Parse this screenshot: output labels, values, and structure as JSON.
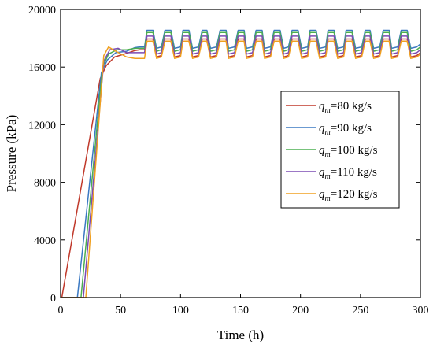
{
  "chart_data": {
    "type": "line",
    "xlabel": "Time (h)",
    "ylabel": "Pressure (kPa)",
    "xlim": [
      0,
      300
    ],
    "ylim": [
      0,
      20000
    ],
    "xticks": [
      "0",
      "50",
      "100",
      "150",
      "200",
      "250",
      "300"
    ],
    "yticks": [
      "0",
      "4000",
      "8000",
      "12000",
      "16000",
      "20000"
    ],
    "grid": false,
    "legend_position": "right",
    "series": [
      {
        "name_main": "q",
        "name_sub": "m",
        "name_rest": "=80 kg/s",
        "color": "#c0392b",
        "x": [
          0,
          1,
          33,
          38,
          45,
          55,
          62,
          66,
          70,
          72,
          77,
          80,
          84,
          87,
          92,
          95,
          100,
          102,
          107,
          110,
          115,
          118,
          122,
          125,
          130,
          133,
          138,
          140,
          145,
          148,
          153,
          155,
          160,
          163,
          168,
          170,
          175,
          178,
          183,
          186,
          190,
          193,
          198,
          201,
          206,
          208,
          213,
          216,
          221,
          223,
          228,
          231,
          236,
          238,
          243,
          246,
          251,
          254,
          258,
          261,
          266,
          269,
          274,
          276,
          281,
          284,
          289,
          292,
          297,
          300
        ],
        "y": [
          0,
          0,
          15200,
          16100,
          16700,
          16950,
          17150,
          17200,
          17200,
          17950,
          17950,
          16700,
          16800,
          17950,
          17950,
          16700,
          16800,
          17950,
          17950,
          16700,
          16800,
          17950,
          17950,
          16700,
          16800,
          17950,
          17950,
          16700,
          16800,
          17950,
          17950,
          16700,
          16800,
          17950,
          17950,
          16700,
          16800,
          17950,
          17950,
          16700,
          16800,
          17950,
          17950,
          16700,
          16800,
          17950,
          17950,
          16700,
          16800,
          17950,
          17950,
          16700,
          16800,
          17950,
          17950,
          16700,
          16800,
          17950,
          17950,
          16700,
          16800,
          17950,
          17950,
          16700,
          16800,
          17950,
          17950,
          16700,
          16800,
          17000
        ]
      },
      {
        "name_main": "q",
        "name_sub": "m",
        "name_rest": "=90 kg/s",
        "color": "#3a78c2",
        "x": [
          0,
          14,
          34,
          39,
          46,
          55,
          62,
          66,
          70,
          72,
          77,
          80,
          84,
          87,
          92,
          95,
          100,
          102,
          107,
          110,
          115,
          118,
          122,
          125,
          130,
          133,
          138,
          140,
          145,
          148,
          153,
          155,
          160,
          163,
          168,
          170,
          175,
          178,
          183,
          186,
          190,
          193,
          198,
          201,
          206,
          208,
          213,
          216,
          221,
          223,
          228,
          231,
          236,
          238,
          243,
          246,
          251,
          254,
          258,
          261,
          266,
          269,
          274,
          276,
          281,
          284,
          289,
          292,
          297,
          300
        ],
        "y": [
          0,
          0,
          15600,
          16500,
          17000,
          17100,
          17350,
          17400,
          17400,
          18550,
          18550,
          17300,
          17400,
          18550,
          18550,
          17300,
          17400,
          18550,
          18550,
          17300,
          17400,
          18550,
          18550,
          17300,
          17400,
          18550,
          18550,
          17300,
          17400,
          18550,
          18550,
          17300,
          17400,
          18550,
          18550,
          17300,
          17400,
          18550,
          18550,
          17300,
          17400,
          18550,
          18550,
          17300,
          17400,
          18550,
          18550,
          17300,
          17400,
          18550,
          18550,
          17300,
          17400,
          18550,
          18550,
          17300,
          17400,
          18550,
          18550,
          17300,
          17400,
          18550,
          18550,
          17300,
          17400,
          18550,
          18550,
          17300,
          17400,
          17600
        ]
      },
      {
        "name_main": "q",
        "name_sub": "m",
        "name_rest": "=100 kg/s",
        "color": "#4caf50",
        "x": [
          0,
          17,
          35,
          40,
          47,
          55,
          62,
          66,
          70,
          72,
          77,
          80,
          84,
          87,
          92,
          95,
          100,
          102,
          107,
          110,
          115,
          118,
          122,
          125,
          130,
          133,
          138,
          140,
          145,
          148,
          153,
          155,
          160,
          163,
          168,
          170,
          175,
          178,
          183,
          186,
          190,
          193,
          198,
          201,
          206,
          208,
          213,
          216,
          221,
          223,
          228,
          231,
          236,
          238,
          243,
          246,
          251,
          254,
          258,
          261,
          266,
          269,
          274,
          276,
          281,
          284,
          289,
          292,
          297,
          300
        ],
        "y": [
          0,
          0,
          16000,
          16900,
          17200,
          17200,
          17300,
          17300,
          17300,
          18400,
          18400,
          17100,
          17200,
          18400,
          18400,
          17100,
          17200,
          18400,
          18400,
          17100,
          17200,
          18400,
          18400,
          17100,
          17200,
          18400,
          18400,
          17100,
          17200,
          18400,
          18400,
          17100,
          17200,
          18400,
          18400,
          17100,
          17200,
          18400,
          18400,
          17100,
          17200,
          18400,
          18400,
          17100,
          17200,
          18400,
          18400,
          17100,
          17200,
          18400,
          18400,
          17100,
          17200,
          18400,
          18400,
          17100,
          17200,
          18400,
          18400,
          17100,
          17200,
          18400,
          18400,
          17100,
          17200,
          18400,
          18400,
          17100,
          17200,
          17400
        ]
      },
      {
        "name_main": "q",
        "name_sub": "m",
        "name_rest": "=110 kg/s",
        "color": "#7b4bb3",
        "x": [
          0,
          19,
          36,
          41,
          48,
          55,
          62,
          66,
          70,
          72,
          77,
          80,
          84,
          87,
          92,
          95,
          100,
          102,
          107,
          110,
          115,
          118,
          122,
          125,
          130,
          133,
          138,
          140,
          145,
          148,
          153,
          155,
          160,
          163,
          168,
          170,
          175,
          178,
          183,
          186,
          190,
          193,
          198,
          201,
          206,
          208,
          213,
          216,
          221,
          223,
          228,
          231,
          236,
          238,
          243,
          246,
          251,
          254,
          258,
          261,
          266,
          269,
          274,
          276,
          281,
          284,
          289,
          292,
          297,
          300
        ],
        "y": [
          0,
          0,
          16400,
          17200,
          17300,
          17000,
          17000,
          17000,
          17000,
          18150,
          18150,
          16900,
          17000,
          18150,
          18150,
          16900,
          17000,
          18150,
          18150,
          16900,
          17000,
          18150,
          18150,
          16900,
          17000,
          18150,
          18150,
          16900,
          17000,
          18150,
          18150,
          16900,
          17000,
          18150,
          18150,
          16900,
          17000,
          18150,
          18150,
          16900,
          17000,
          18150,
          18150,
          16900,
          17000,
          18150,
          18150,
          16900,
          17000,
          18150,
          18150,
          16900,
          17000,
          18150,
          18150,
          16900,
          17000,
          18150,
          18150,
          16900,
          17000,
          18150,
          18150,
          16900,
          17000,
          18150,
          18150,
          16900,
          17000,
          17200
        ]
      },
      {
        "name_main": "q",
        "name_sub": "m",
        "name_rest": "=120 kg/s",
        "color": "#f0a020",
        "x": [
          0,
          21,
          36,
          40,
          46,
          55,
          62,
          66,
          70,
          72,
          77,
          80,
          84,
          87,
          92,
          95,
          100,
          102,
          107,
          110,
          115,
          118,
          122,
          125,
          130,
          133,
          138,
          140,
          145,
          148,
          153,
          155,
          160,
          163,
          168,
          170,
          175,
          178,
          183,
          186,
          190,
          193,
          198,
          201,
          206,
          208,
          213,
          216,
          221,
          223,
          228,
          231,
          236,
          238,
          243,
          246,
          251,
          254,
          258,
          261,
          266,
          269,
          274,
          276,
          281,
          284,
          289,
          292,
          297,
          300
        ],
        "y": [
          0,
          0,
          16800,
          17400,
          17100,
          16700,
          16600,
          16600,
          16600,
          17800,
          17800,
          16600,
          16700,
          17800,
          17800,
          16600,
          16700,
          17800,
          17800,
          16600,
          16700,
          17800,
          17800,
          16600,
          16700,
          17800,
          17800,
          16600,
          16700,
          17800,
          17800,
          16600,
          16700,
          17800,
          17800,
          16600,
          16700,
          17800,
          17800,
          16600,
          16700,
          17800,
          17800,
          16600,
          16700,
          17800,
          17800,
          16600,
          16700,
          17800,
          17800,
          16600,
          16700,
          17800,
          17800,
          16600,
          16700,
          17800,
          17800,
          16600,
          16700,
          17800,
          17800,
          16600,
          16700,
          17800,
          17800,
          16600,
          16700,
          16900
        ]
      }
    ]
  }
}
